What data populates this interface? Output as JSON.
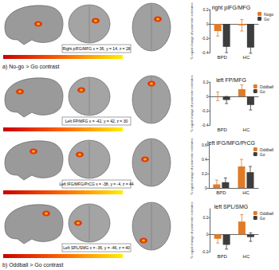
{
  "panels": [
    {
      "label": "a)",
      "contrast": "No-go > Go contrast",
      "regions": [
        {
          "label": "Right pIFG/MFG",
          "coords": "x = 36, y = 14, z = 28"
        }
      ]
    },
    {
      "label": "b)",
      "contrast": "Oddball > Go contrast",
      "regions": [
        {
          "label": "Left FP/MFG",
          "coords": "x = -42, y = 42, z = 30"
        },
        {
          "label": "Left IFG/MFG/PrCG",
          "coords": "x = -38, y = -4, z = 44"
        },
        {
          "label": "Left SPL/SMG",
          "coords": "x = -36, y = -46, z = 40"
        }
      ]
    }
  ],
  "chart_data": [
    {
      "type": "bar",
      "title": "right pIFG/MFG",
      "ylabel": "% signal change of parameter estimates",
      "categories": [
        "BPD",
        "HC"
      ],
      "series": [
        {
          "name": "Nogo",
          "color": "#e07b28",
          "values": [
            -0.1,
            -0.02
          ],
          "errors": [
            0.07,
            0.08
          ]
        },
        {
          "name": "Go",
          "color": "#3d3d3d",
          "values": [
            -0.32,
            -0.33
          ],
          "errors": [
            0.08,
            0.08
          ]
        }
      ],
      "ylim": [
        -0.4,
        0.2
      ],
      "yticks": [
        -0.4,
        -0.2,
        0,
        0.2
      ],
      "legend": "right"
    },
    {
      "type": "bar",
      "title": "left FP/MFG",
      "ylabel": "% signal change of parameter estimates",
      "categories": [
        "BPD",
        "HC"
      ],
      "series": [
        {
          "name": "Oddball",
          "color": "#e07b28",
          "values": [
            0.0,
            0.1
          ],
          "errors": [
            0.06,
            0.06
          ]
        },
        {
          "name": "Go",
          "color": "#3d3d3d",
          "values": [
            -0.05,
            -0.12
          ],
          "errors": [
            0.05,
            0.07
          ]
        }
      ],
      "ylim": [
        -0.4,
        0.2
      ],
      "yticks": [
        -0.4,
        -0.2,
        0,
        0.2
      ],
      "legend": "right"
    },
    {
      "type": "bar",
      "title": "left IFG/MFG/PrCG",
      "ylabel": "% signal change of parameter estimates",
      "categories": [
        "BPD",
        "HC"
      ],
      "series": [
        {
          "name": "Oddball",
          "color": "#e07b28",
          "values": [
            0.05,
            0.3
          ],
          "errors": [
            0.06,
            0.1
          ]
        },
        {
          "name": "Go",
          "color": "#3d3d3d",
          "values": [
            0.08,
            0.22
          ],
          "errors": [
            0.06,
            0.08
          ]
        }
      ],
      "ylim": [
        0,
        0.6
      ],
      "yticks": [
        0,
        0.2,
        0.4,
        0.6
      ],
      "legend": "right"
    },
    {
      "type": "bar",
      "title": "left SPL/SMG",
      "ylabel": "% signal change of parameter estimates",
      "categories": [
        "BPD",
        "HC"
      ],
      "series": [
        {
          "name": "Oddball",
          "color": "#e07b28",
          "values": [
            -0.05,
            0.15
          ],
          "errors": [
            0.05,
            0.08
          ]
        },
        {
          "name": "Go",
          "color": "#3d3d3d",
          "values": [
            -0.12,
            -0.03
          ],
          "errors": [
            0.05,
            0.05
          ]
        }
      ],
      "ylim": [
        -0.2,
        0.3
      ],
      "yticks": [
        -0.2,
        0,
        0.2
      ],
      "legend": "right"
    }
  ]
}
